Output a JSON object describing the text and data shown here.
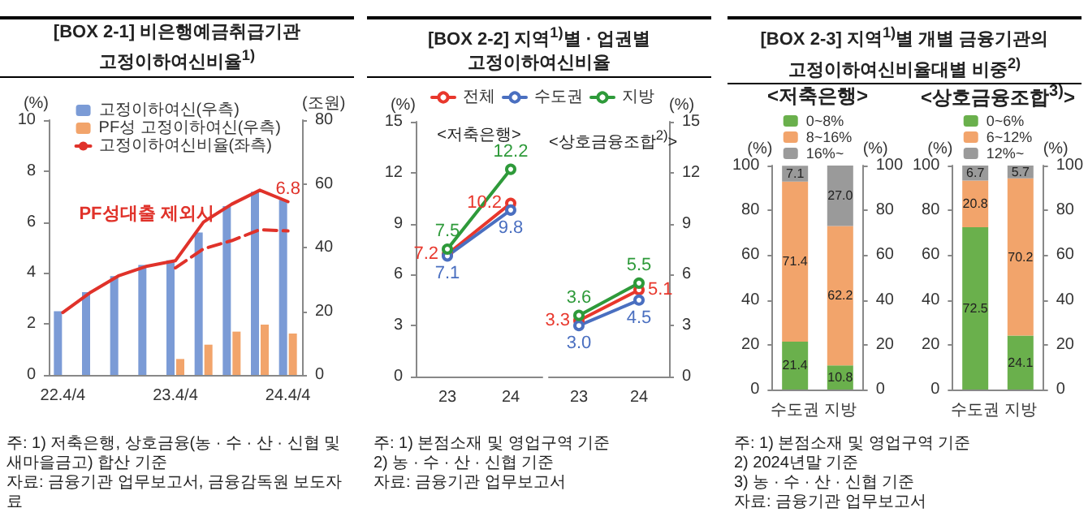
{
  "chart_data": [
    {
      "type": "bar",
      "title": "[BOX 2-1] 비은행예금취급기관\n고정이하여신비율$^{1)}$",
      "categories": [
        "22.4/4",
        null,
        null,
        null,
        "23.4/4",
        null,
        null,
        null,
        "24.4/4"
      ],
      "ylabel": "(%)",
      "y2label": "(조원)",
      "ylim": [
        0,
        10
      ],
      "yticks": [
        0,
        2,
        4,
        6,
        8,
        10
      ],
      "y2lim": [
        0,
        80
      ],
      "y2ticks": [
        0,
        20,
        40,
        60,
        80
      ],
      "legend": "top right",
      "marker": "none",
      "series": [
        {
          "name": "고정이하여신(우측)",
          "color": "#7b9bd6",
          "axis": "y2",
          "values": [
            20,
            26,
            31,
            34.5,
            36,
            44.7,
            53,
            57.5,
            55
          ]
        },
        {
          "name": "PF성 고정이하여신(우측)",
          "color": "#f2a46b",
          "axis": "y2",
          "values": [
            null,
            null,
            null,
            null,
            5,
            9.5,
            13.6,
            15.8,
            13
          ]
        },
        {
          "name": "고정이하여신비율(좌측)",
          "type": "line",
          "color": "#e0322a",
          "values": [
            2.45,
            3.25,
            3.9,
            4.27,
            4.48,
            6.0,
            6.7,
            7.25,
            6.8
          ],
          "value_labels": [
            null,
            null,
            null,
            null,
            null,
            null,
            null,
            null,
            "6.8"
          ]
        },
        {
          "type": "line",
          "color": "#e0322a",
          "line_style": "dashed",
          "values": [
            null,
            null,
            null,
            null,
            4.2,
            4.95,
            5.27,
            5.7,
            5.65
          ]
        }
      ],
      "annotations": [
        "PF성대출 제외시",
        "주: 1) 저축은행, 상호금융(농 · 수 · 산 · 신협 및 새마을금고) 합산 기준",
        "자료: 금융기관 업무보고서, 금융감독원 보도자료"
      ]
    },
    {
      "type": "line",
      "title": "[BOX 2-2] 지역$^{1)}$별 · 업권별\n고정이하여신비율",
      "subtitle": "<저축은행>",
      "categories": [
        "23",
        "24"
      ],
      "ylabel": "(%)",
      "ylim": [
        0,
        15
      ],
      "yticks": [
        0,
        3,
        6,
        9,
        12,
        15
      ],
      "legend": "top",
      "marker": "circle",
      "series": [
        {
          "name": "전체",
          "color": "#e8372c",
          "values": [
            7.2,
            10.2
          ],
          "value_labels": [
            "7.2",
            "10.2"
          ]
        },
        {
          "name": "수도권",
          "color": "#4a6fc0",
          "values": [
            7.1,
            9.8
          ],
          "value_labels": [
            "7.1",
            "9.8"
          ]
        },
        {
          "name": "지방",
          "color": "#2e9a3a",
          "values": [
            7.5,
            12.2
          ],
          "value_labels": [
            "7.5",
            "12.2"
          ]
        }
      ],
      "annotations": [
        "주: 1) 본점소재 및 영업구역 기준",
        "2) 농 · 수 · 산 · 신협 기준",
        "자료: 금융기관 업무보고서"
      ]
    },
    {
      "type": "line",
      "subtitle": "<상호금융조합$^{2)}$>",
      "categories": [
        "23",
        "24"
      ],
      "y2label": "(%)",
      "y2lim": [
        0,
        15
      ],
      "y2ticks": [
        0,
        3,
        6,
        9,
        12,
        15
      ],
      "marker": "circle",
      "series": [
        {
          "color": "#e8372c",
          "axis": "y2",
          "values": [
            3.3,
            5.1
          ],
          "value_labels": [
            "3.3",
            "5.1"
          ]
        },
        {
          "color": "#4a6fc0",
          "axis": "y2",
          "values": [
            3.0,
            4.5
          ],
          "value_labels": [
            "3.0",
            "4.5"
          ]
        },
        {
          "color": "#2e9a3a",
          "axis": "y2",
          "values": [
            3.6,
            5.5
          ],
          "value_labels": [
            "3.6",
            "5.5"
          ]
        }
      ]
    },
    {
      "type": "bar",
      "stacked": true,
      "title": "[BOX 2-3] 지역$^{1)}$별 개별 금융기관의\n고정이하여신비율대별 비중$^{2)}$",
      "subtitle": "<저축은행>",
      "categories": [
        "수도권",
        "지방"
      ],
      "ylabel": "(%)",
      "y2label": "(%)",
      "ylim": [
        0,
        100
      ],
      "yticks": [
        0,
        20,
        40,
        60,
        80,
        100
      ],
      "y2lim": [
        0,
        100
      ],
      "y2ticks": [
        0,
        20,
        40,
        60,
        80,
        100
      ],
      "legend": "top",
      "series": [
        {
          "name": "0~8%",
          "color": "#6ab04c",
          "values": [
            21.4,
            10.8
          ],
          "value_labels": [
            "21.4",
            "10.8"
          ]
        },
        {
          "name": "8~16%",
          "color": "#f2a46b",
          "values": [
            71.4,
            62.2
          ],
          "value_labels": [
            "71.4",
            "62.2"
          ]
        },
        {
          "name": "16%~",
          "color": "#9a9a9a",
          "values": [
            7.1,
            27.0
          ],
          "value_labels": [
            "7.1",
            "27.0"
          ]
        }
      ],
      "annotations": [
        "주: 1) 본점소재 및 영업구역 기준",
        "2) 2024년말 기준",
        "3) 농 · 수 · 산 · 신협 기준",
        "자료: 금융기관 업무보고서"
      ]
    },
    {
      "type": "bar",
      "stacked": true,
      "subtitle": "<상호금융조합$^{3)}$>",
      "categories": [
        "수도권",
        "지방"
      ],
      "ylabel": "(%)",
      "y2label": "(%)",
      "ylim": [
        0,
        100
      ],
      "yticks": [
        0,
        20,
        40,
        60,
        80,
        100
      ],
      "y2lim": [
        0,
        100
      ],
      "y2ticks": [
        0,
        20,
        40,
        60,
        80,
        100
      ],
      "legend": "top",
      "series": [
        {
          "name": "0~6%",
          "color": "#6ab04c",
          "values": [
            72.5,
            24.1
          ],
          "value_labels": [
            "72.5",
            "24.1"
          ]
        },
        {
          "name": "6~12%",
          "color": "#f2a46b",
          "values": [
            20.8,
            70.2
          ],
          "value_labels": [
            "20.8",
            "70.2"
          ]
        },
        {
          "name": "12%~",
          "color": "#9a9a9a",
          "values": [
            6.7,
            5.7
          ],
          "value_labels": [
            "6.7",
            "5.7"
          ]
        }
      ]
    }
  ]
}
